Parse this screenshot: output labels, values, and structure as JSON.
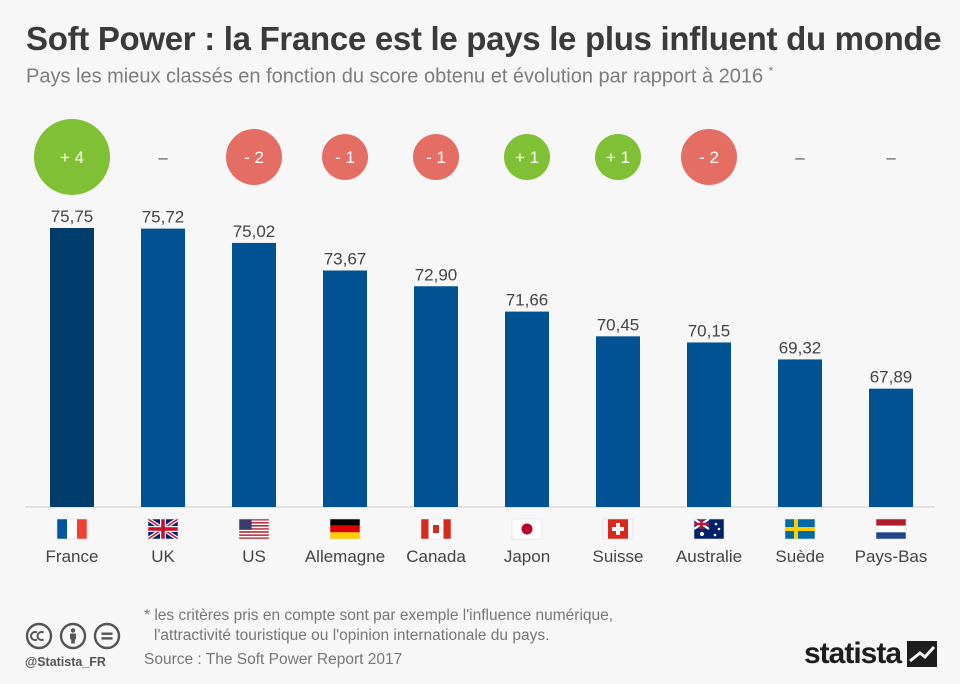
{
  "header": {
    "title": "Soft Power : la France est le pays le plus influent du monde",
    "subtitle": "Pays les mieux classés en fonction du score obtenu et évolution par rapport à 2016",
    "subtitle_mark": "*"
  },
  "chart_data": {
    "type": "bar",
    "categories": [
      "France",
      "UK",
      "US",
      "Allemagne",
      "Canada",
      "Japon",
      "Suisse",
      "Australie",
      "Suède",
      "Pays-Bas"
    ],
    "values": [
      75.75,
      75.72,
      75.02,
      73.67,
      72.9,
      71.66,
      70.45,
      70.15,
      69.32,
      67.89
    ],
    "value_labels": [
      "75,75",
      "75,72",
      "75,02",
      "73,67",
      "72,90",
      "71,66",
      "70,45",
      "70,15",
      "69,32",
      "67,89"
    ],
    "rank_change": [
      4,
      0,
      -2,
      -1,
      -1,
      1,
      1,
      -2,
      0,
      0
    ],
    "rank_change_labels": [
      "+ 4",
      "–",
      "- 2",
      "- 1",
      "- 1",
      "+ 1",
      "+ 1",
      "- 2",
      "–",
      "–"
    ],
    "flags": [
      "france-flag",
      "uk-flag",
      "us-flag",
      "germany-flag",
      "canada-flag",
      "japan-flag",
      "switzerland-flag",
      "australia-flag",
      "sweden-flag",
      "netherlands-flag"
    ],
    "colors": {
      "bar": "#005293",
      "bar_highlight": "#003d6b",
      "positive": "#7fc035",
      "negative": "#e46e63",
      "neutral": "#555555"
    },
    "grid": false,
    "legend": "none"
  },
  "footer": {
    "note_line1": "* les critères pris en compte sont par exemple l'influence numérique,",
    "note_line2": "l'attractivité touristique ou l'opinion internationale du pays.",
    "source": "Source : The Soft Power Report 2017",
    "handle": "@Statista_FR",
    "brand": "statista",
    "license_icons": [
      "cc-icon",
      "by-icon",
      "nd-icon"
    ]
  }
}
